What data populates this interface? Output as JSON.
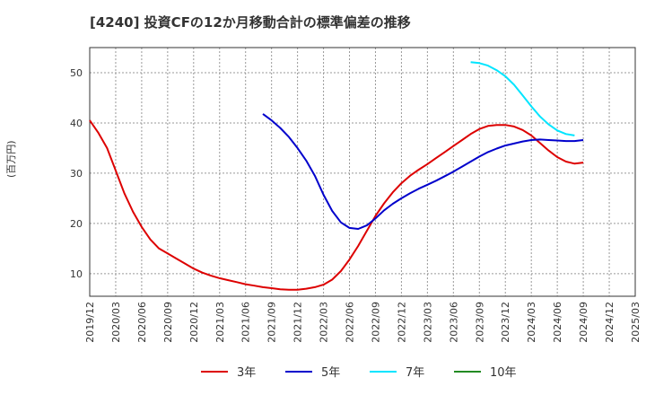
{
  "chart_data": {
    "type": "line",
    "title": "[4240]  投資CFの12か月移動合計の標準偏差の推移",
    "ylabel": "(百万円)",
    "xlabel": "",
    "ylim": [
      5.5,
      55
    ],
    "yticks": [
      10,
      20,
      30,
      40,
      50
    ],
    "x_categories": [
      "2019/12",
      "2020/03",
      "2020/06",
      "2020/09",
      "2020/12",
      "2021/03",
      "2021/06",
      "2021/09",
      "2021/12",
      "2022/03",
      "2022/06",
      "2022/09",
      "2022/12",
      "2023/03",
      "2023/06",
      "2023/09",
      "2023/12",
      "2024/03",
      "2024/06",
      "2024/09",
      "2024/12",
      "2025/03"
    ],
    "grid": true,
    "legend_position": "bottom",
    "series": [
      {
        "name": "3年",
        "color": "#dd0000",
        "points": [
          [
            "2019/12",
            40.5
          ],
          [
            "2020/01",
            38
          ],
          [
            "2020/02",
            35
          ],
          [
            "2020/03",
            30.5
          ],
          [
            "2020/04",
            26
          ],
          [
            "2020/05",
            22.3
          ],
          [
            "2020/06",
            19.3
          ],
          [
            "2020/07",
            16.8
          ],
          [
            "2020/08",
            15
          ],
          [
            "2020/09",
            14
          ],
          [
            "2020/10",
            13
          ],
          [
            "2020/11",
            12
          ],
          [
            "2020/12",
            11
          ],
          [
            "2021/01",
            10.2
          ],
          [
            "2021/02",
            9.6
          ],
          [
            "2021/03",
            9.1
          ],
          [
            "2021/04",
            8.7
          ],
          [
            "2021/05",
            8.3
          ],
          [
            "2021/06",
            7.9
          ],
          [
            "2021/07",
            7.6
          ],
          [
            "2021/08",
            7.3
          ],
          [
            "2021/09",
            7.1
          ],
          [
            "2021/10",
            6.9
          ],
          [
            "2021/11",
            6.8
          ],
          [
            "2021/12",
            6.8
          ],
          [
            "2022/01",
            7
          ],
          [
            "2022/02",
            7.3
          ],
          [
            "2022/03",
            7.8
          ],
          [
            "2022/04",
            8.8
          ],
          [
            "2022/05",
            10.5
          ],
          [
            "2022/06",
            12.8
          ],
          [
            "2022/07",
            15.5
          ],
          [
            "2022/08",
            18.5
          ],
          [
            "2022/09",
            21.5
          ],
          [
            "2022/10",
            24
          ],
          [
            "2022/11",
            26.2
          ],
          [
            "2022/12",
            28
          ],
          [
            "2023/01",
            29.5
          ],
          [
            "2023/02",
            30.7
          ],
          [
            "2023/03",
            31.8
          ],
          [
            "2023/04",
            33
          ],
          [
            "2023/05",
            34.2
          ],
          [
            "2023/06",
            35.4
          ],
          [
            "2023/07",
            36.6
          ],
          [
            "2023/08",
            37.8
          ],
          [
            "2023/09",
            38.8
          ],
          [
            "2023/10",
            39.4
          ],
          [
            "2023/11",
            39.6
          ],
          [
            "2023/12",
            39.6
          ],
          [
            "2024/01",
            39.3
          ],
          [
            "2024/02",
            38.6
          ],
          [
            "2024/03",
            37.5
          ],
          [
            "2024/04",
            36
          ],
          [
            "2024/05",
            34.5
          ],
          [
            "2024/06",
            33.2
          ],
          [
            "2024/07",
            32.3
          ],
          [
            "2024/08",
            31.9
          ],
          [
            "2024/09",
            32.1
          ]
        ]
      },
      {
        "name": "5年",
        "color": "#0000cc",
        "points": [
          [
            "2021/08",
            41.8
          ],
          [
            "2021/09",
            40.5
          ],
          [
            "2021/10",
            39
          ],
          [
            "2021/11",
            37.2
          ],
          [
            "2021/12",
            35
          ],
          [
            "2022/01",
            32.5
          ],
          [
            "2022/02",
            29.5
          ],
          [
            "2022/03",
            25.7
          ],
          [
            "2022/04",
            22.5
          ],
          [
            "2022/05",
            20.2
          ],
          [
            "2022/06",
            19.1
          ],
          [
            "2022/07",
            18.9
          ],
          [
            "2022/08",
            19.6
          ],
          [
            "2022/09",
            21
          ],
          [
            "2022/10",
            22.6
          ],
          [
            "2022/11",
            23.9
          ],
          [
            "2022/12",
            25
          ],
          [
            "2023/01",
            26
          ],
          [
            "2023/02",
            26.9
          ],
          [
            "2023/03",
            27.7
          ],
          [
            "2023/04",
            28.5
          ],
          [
            "2023/05",
            29.4
          ],
          [
            "2023/06",
            30.3
          ],
          [
            "2023/07",
            31.3
          ],
          [
            "2023/08",
            32.3
          ],
          [
            "2023/09",
            33.3
          ],
          [
            "2023/10",
            34.2
          ],
          [
            "2023/11",
            34.9
          ],
          [
            "2023/12",
            35.5
          ],
          [
            "2024/01",
            35.9
          ],
          [
            "2024/02",
            36.3
          ],
          [
            "2024/03",
            36.6
          ],
          [
            "2024/04",
            36.7
          ],
          [
            "2024/05",
            36.6
          ],
          [
            "2024/06",
            36.5
          ],
          [
            "2024/07",
            36.4
          ],
          [
            "2024/08",
            36.4
          ],
          [
            "2024/09",
            36.6
          ]
        ]
      },
      {
        "name": "7年",
        "color": "#00e5ff",
        "points": [
          [
            "2023/08",
            52.1
          ],
          [
            "2023/09",
            51.9
          ],
          [
            "2023/10",
            51.4
          ],
          [
            "2023/11",
            50.5
          ],
          [
            "2023/12",
            49.3
          ],
          [
            "2024/01",
            47.6
          ],
          [
            "2024/02",
            45.5
          ],
          [
            "2024/03",
            43.3
          ],
          [
            "2024/04",
            41.3
          ],
          [
            "2024/05",
            39.7
          ],
          [
            "2024/06",
            38.5
          ],
          [
            "2024/07",
            37.8
          ],
          [
            "2024/08",
            37.5
          ]
        ]
      },
      {
        "name": "10年",
        "color": "#228b22",
        "points": []
      }
    ]
  }
}
